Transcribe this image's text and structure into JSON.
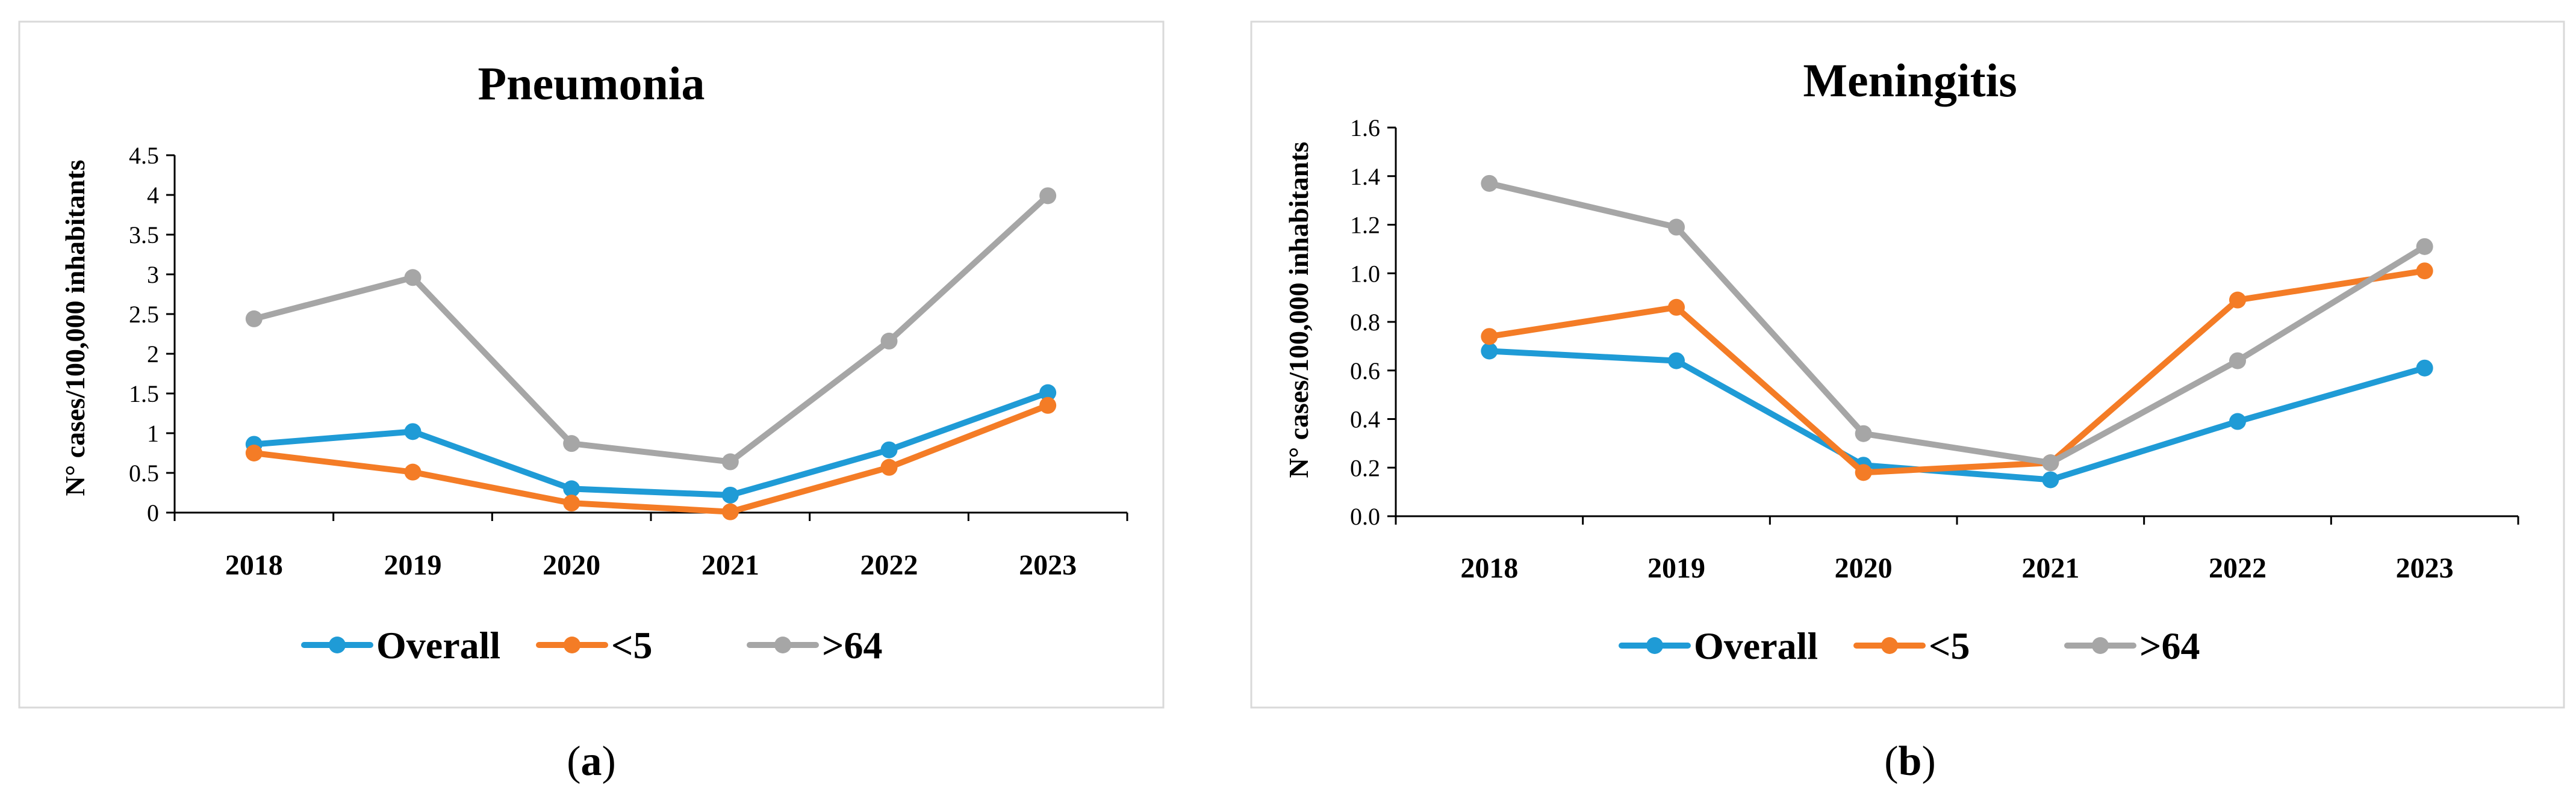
{
  "colors": {
    "overall": "#1f9bd6",
    "under5": "#f47c26",
    "over64": "#a6a6a6"
  },
  "chart_data": [
    {
      "type": "line",
      "title": "Pneumonia",
      "caption_open": "(",
      "caption_letter": "a",
      "caption_close": ")",
      "ylabel": "N° cases/100,000 inhabitants",
      "xlabel": "",
      "categories": [
        "2018",
        "2019",
        "2020",
        "2021",
        "2022",
        "2023"
      ],
      "ylim": [
        0,
        4.5
      ],
      "yticks": [
        0,
        0.5,
        1,
        1.5,
        2,
        2.5,
        3,
        3.5,
        4,
        4.5
      ],
      "ytick_labels": [
        "0",
        "0.5",
        "1",
        "1.5",
        "2",
        "2.5",
        "3",
        "3.5",
        "4",
        "4.5"
      ],
      "legend_position": "bottom",
      "series": [
        {
          "name": "Overall",
          "color_key": "overall",
          "values": [
            0.86,
            1.02,
            0.3,
            0.22,
            0.79,
            1.51
          ]
        },
        {
          "name": "<5",
          "color_key": "under5",
          "values": [
            0.75,
            0.51,
            0.12,
            0.01,
            0.57,
            1.35
          ]
        },
        {
          "name": ">64",
          "color_key": "over64",
          "values": [
            2.44,
            2.96,
            0.87,
            0.64,
            2.16,
            3.99
          ]
        }
      ]
    },
    {
      "type": "line",
      "title": "Meningitis",
      "caption_open": "(",
      "caption_letter": "b",
      "caption_close": ")",
      "ylabel": "N° cases/100,000 inhabitants",
      "xlabel": "",
      "categories": [
        "2018",
        "2019",
        "2020",
        "2021",
        "2022",
        "2023"
      ],
      "ylim": [
        0,
        1.6
      ],
      "yticks": [
        0,
        0.2,
        0.4,
        0.6,
        0.8,
        1.0,
        1.2,
        1.4,
        1.6
      ],
      "ytick_labels": [
        "0.0",
        "0.2",
        "0.4",
        "0.6",
        "0.8",
        "1.0",
        "1.2",
        "1.4",
        "1.6"
      ],
      "legend_position": "bottom",
      "series": [
        {
          "name": "Overall",
          "color_key": "overall",
          "values": [
            0.68,
            0.64,
            0.21,
            0.15,
            0.39,
            0.61
          ]
        },
        {
          "name": "<5",
          "color_key": "under5",
          "values": [
            0.74,
            0.86,
            0.18,
            0.22,
            0.89,
            1.01
          ]
        },
        {
          "name": ">64",
          "color_key": "over64",
          "values": [
            1.37,
            1.19,
            0.34,
            0.22,
            0.64,
            1.11
          ]
        }
      ]
    }
  ]
}
